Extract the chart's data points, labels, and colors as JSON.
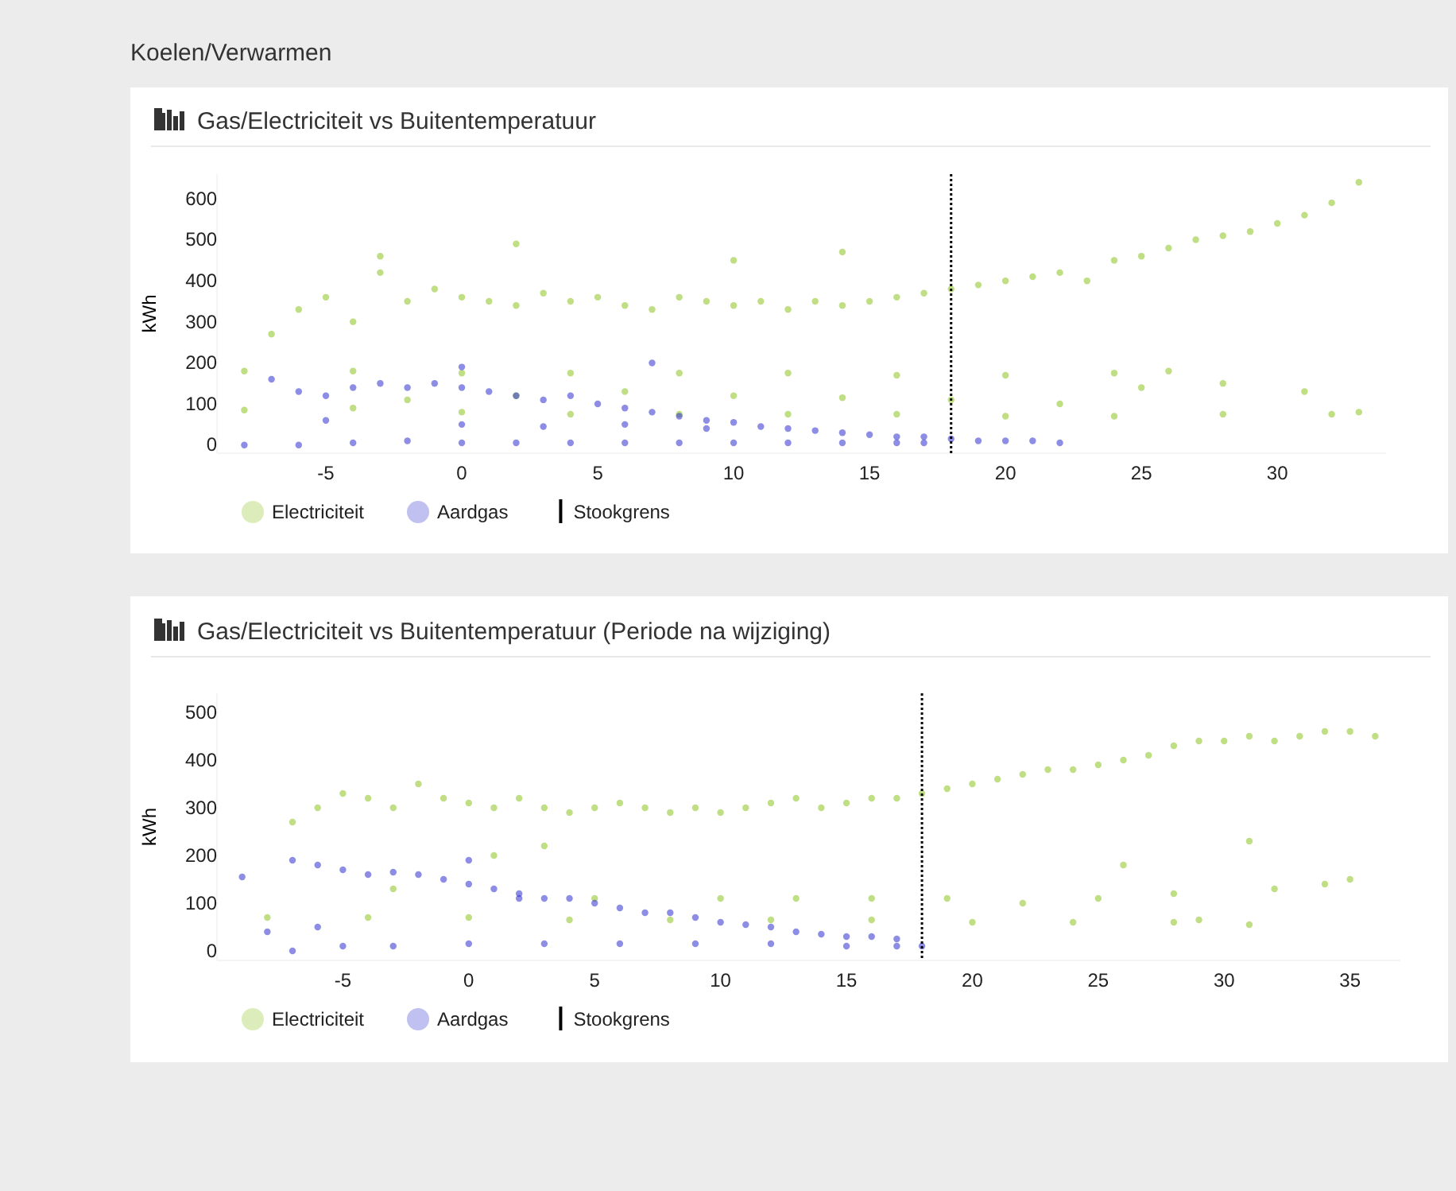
{
  "chart_data": [
    {
      "type": "scatter",
      "title": "Gas/Electriciteit vs Buitentemperatuur",
      "ylabel": "kWh",
      "annotations": [
        "Koelen/Verwarmen"
      ],
      "xlim": [
        -9,
        34
      ],
      "xticks": [
        -5,
        0,
        5,
        10,
        15,
        20,
        25,
        30
      ],
      "ylim": [
        -20,
        660
      ],
      "yticks": [
        0,
        100,
        200,
        300,
        400,
        500,
        600
      ],
      "marker": "circle",
      "legend": "bottom",
      "ref_lines": [
        {
          "axis": "x",
          "value": 18,
          "label": "Stookgrens",
          "color": "#000000",
          "line_style": "dotted"
        }
      ],
      "series": [
        {
          "name": "Electriciteit",
          "color": "#8cc21e",
          "x": [
            -8,
            -7,
            -6,
            -5,
            -4,
            -3,
            -2,
            -1,
            0,
            1,
            2,
            3,
            4,
            5,
            6,
            7,
            8,
            9,
            10,
            11,
            12,
            13,
            14,
            15,
            16,
            17,
            18,
            19,
            20,
            21,
            22,
            23,
            24,
            25,
            26,
            27,
            28,
            29,
            30,
            31,
            32,
            33,
            -4,
            0,
            4,
            8,
            12,
            16,
            20,
            24,
            26,
            -8,
            -4,
            0,
            4,
            8,
            12,
            16,
            20,
            24,
            28,
            32,
            33,
            -2,
            2,
            6,
            10,
            14,
            18,
            22,
            25,
            -3,
            2,
            10,
            14,
            28,
            31
          ],
          "values": [
            180,
            270,
            330,
            360,
            300,
            420,
            350,
            380,
            360,
            350,
            340,
            370,
            350,
            360,
            340,
            330,
            360,
            350,
            340,
            350,
            330,
            350,
            340,
            350,
            360,
            370,
            380,
            390,
            400,
            410,
            420,
            400,
            450,
            460,
            480,
            500,
            510,
            520,
            540,
            560,
            590,
            640,
            180,
            175,
            175,
            175,
            175,
            170,
            170,
            175,
            180,
            85,
            90,
            80,
            75,
            75,
            75,
            75,
            70,
            70,
            75,
            75,
            80,
            110,
            120,
            130,
            120,
            115,
            110,
            100,
            140,
            460,
            490,
            450,
            470,
            150,
            130
          ]
        },
        {
          "name": "Aardgas",
          "color": "#2f2fd0",
          "x": [
            -8,
            -6,
            -4,
            -2,
            0,
            2,
            4,
            6,
            8,
            10,
            12,
            14,
            16,
            17,
            -7,
            -6,
            -5,
            -4,
            -3,
            -2,
            -1,
            0,
            1,
            2,
            3,
            4,
            5,
            6,
            7,
            8,
            9,
            10,
            11,
            12,
            13,
            14,
            15,
            16,
            17,
            18,
            19,
            20,
            21,
            22,
            0,
            3,
            6,
            9,
            0,
            7,
            -5
          ],
          "values": [
            0,
            0,
            5,
            10,
            5,
            5,
            5,
            5,
            5,
            5,
            5,
            5,
            5,
            5,
            160,
            130,
            120,
            140,
            150,
            140,
            150,
            140,
            130,
            120,
            110,
            120,
            100,
            90,
            80,
            70,
            60,
            55,
            45,
            40,
            35,
            30,
            25,
            20,
            20,
            15,
            10,
            10,
            10,
            5,
            50,
            45,
            50,
            40,
            190,
            200,
            60
          ]
        }
      ]
    },
    {
      "type": "scatter",
      "title": "Gas/Electriciteit vs Buitentemperatuur (Periode na wijziging)",
      "ylabel": "kWh",
      "xlim": [
        -10,
        37
      ],
      "xticks": [
        -5,
        0,
        5,
        10,
        15,
        20,
        25,
        30,
        35
      ],
      "ylim": [
        -20,
        540
      ],
      "yticks": [
        0,
        100,
        200,
        300,
        400,
        500
      ],
      "marker": "circle",
      "legend": "bottom",
      "ref_lines": [
        {
          "axis": "x",
          "value": 18,
          "label": "Stookgrens",
          "color": "#000000",
          "line_style": "dotted"
        }
      ],
      "series": [
        {
          "name": "Electriciteit",
          "color": "#8cc21e",
          "x": [
            -7,
            -6,
            -5,
            -4,
            -3,
            -2,
            -1,
            0,
            1,
            2,
            3,
            4,
            5,
            6,
            7,
            8,
            9,
            10,
            11,
            12,
            13,
            14,
            15,
            16,
            17,
            18,
            19,
            20,
            21,
            22,
            23,
            24,
            25,
            26,
            27,
            28,
            29,
            30,
            31,
            32,
            33,
            34,
            35,
            36,
            -8,
            -4,
            0,
            4,
            8,
            12,
            16,
            20,
            24,
            28,
            29,
            31,
            5,
            10,
            13,
            16,
            19,
            22,
            25,
            28,
            32,
            34,
            -3,
            1,
            3,
            26,
            31,
            35
          ],
          "values": [
            270,
            300,
            330,
            320,
            300,
            350,
            320,
            310,
            300,
            320,
            300,
            290,
            300,
            310,
            300,
            290,
            300,
            290,
            300,
            310,
            320,
            300,
            310,
            320,
            320,
            330,
            340,
            350,
            360,
            370,
            380,
            380,
            390,
            400,
            410,
            430,
            440,
            440,
            450,
            440,
            450,
            460,
            460,
            450,
            70,
            70,
            70,
            65,
            65,
            65,
            65,
            60,
            60,
            60,
            65,
            55,
            110,
            110,
            110,
            110,
            110,
            100,
            110,
            120,
            130,
            140,
            130,
            200,
            220,
            180,
            230,
            150
          ]
        },
        {
          "name": "Aardgas",
          "color": "#2f2fd0",
          "x": [
            -8,
            -7,
            -5,
            -3,
            0,
            3,
            6,
            9,
            12,
            15,
            17,
            18,
            -9,
            -7,
            -6,
            -5,
            -4,
            -3,
            -2,
            -1,
            0,
            1,
            2,
            3,
            4,
            5,
            6,
            7,
            8,
            9,
            10,
            11,
            12,
            13,
            14,
            15,
            16,
            17,
            0,
            2,
            -6
          ],
          "values": [
            40,
            0,
            10,
            10,
            15,
            15,
            15,
            15,
            15,
            10,
            10,
            10,
            155,
            190,
            180,
            170,
            160,
            165,
            160,
            150,
            140,
            130,
            120,
            110,
            110,
            100,
            90,
            80,
            80,
            70,
            60,
            55,
            50,
            40,
            35,
            30,
            30,
            25,
            190,
            110,
            50
          ]
        }
      ]
    }
  ]
}
